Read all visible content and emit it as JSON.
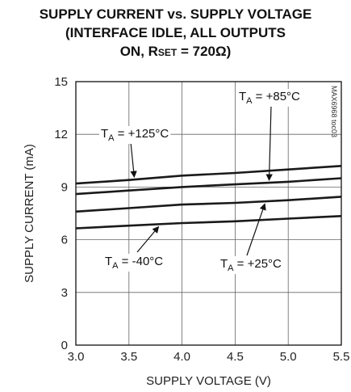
{
  "title": {
    "line1": "SUPPLY CURRENT vs. SUPPLY VOLTAGE",
    "line2": "(INTERFACE IDLE, ALL OUTPUTS",
    "line3_prefix": "ON, R",
    "line3_sub": "SET",
    "line3_suffix": " = 720Ω)"
  },
  "figure_code": "MAX6968 toc03",
  "chart_data": {
    "type": "line",
    "xlabel": "SUPPLY VOLTAGE (V)",
    "ylabel": "SUPPLY CURRENT (mA)",
    "xlim": [
      3.0,
      5.5
    ],
    "ylim": [
      0,
      15
    ],
    "x_ticks": [
      3.0,
      3.5,
      4.0,
      4.5,
      5.0,
      5.5
    ],
    "x_tick_labels": [
      "3.0",
      "3.5",
      "4.0",
      "4.5",
      "5.0",
      "5.5"
    ],
    "y_ticks": [
      0,
      3,
      6,
      9,
      12,
      15
    ],
    "y_tick_labels": [
      "0",
      "3",
      "6",
      "9",
      "12",
      "15"
    ],
    "grid": true,
    "x": [
      3.0,
      3.5,
      4.0,
      4.5,
      5.0,
      5.5
    ],
    "series": [
      {
        "name": "+125°C",
        "values": [
          9.2,
          9.4,
          9.65,
          9.8,
          10.0,
          10.2
        ]
      },
      {
        "name": "+85°C",
        "values": [
          8.6,
          8.8,
          9.0,
          9.15,
          9.3,
          9.5
        ]
      },
      {
        "name": "+25°C",
        "values": [
          7.6,
          7.8,
          8.0,
          8.1,
          8.25,
          8.45
        ]
      },
      {
        "name": "-40°C",
        "values": [
          6.65,
          6.8,
          6.95,
          7.05,
          7.2,
          7.35
        ]
      }
    ],
    "annotations": [
      {
        "series": "+125°C",
        "prefix": "T",
        "sub": "A",
        "text": " = +125°C"
      },
      {
        "series": "+85°C",
        "prefix": "T",
        "sub": "A",
        "text": " = +85°C"
      },
      {
        "series": "+25°C",
        "prefix": "T",
        "sub": "A",
        "text": " = +25°C"
      },
      {
        "series": "-40°C",
        "prefix": "T",
        "sub": "A",
        "text": " = -40°C"
      }
    ]
  }
}
